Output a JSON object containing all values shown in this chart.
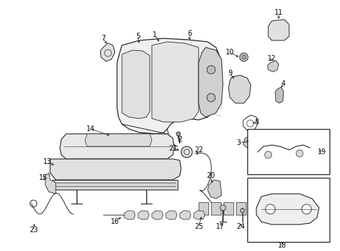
{
  "bg_color": "#ffffff",
  "line_color": "#222222",
  "fig_w": 4.89,
  "fig_h": 3.6,
  "dpi": 100
}
